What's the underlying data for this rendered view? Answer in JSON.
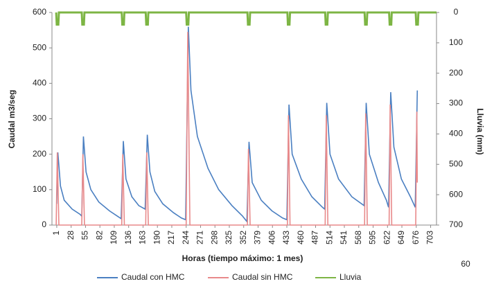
{
  "chart_data": {
    "type": "line",
    "x_label": "Horas (tiempo máximo: 1 mes)",
    "y_label": "Caudal m3/seg",
    "y2_label": "Lluvia (mm)",
    "xlim": [
      -8,
      714
    ],
    "xticks": [
      1,
      28,
      55,
      82,
      109,
      136,
      163,
      190,
      217,
      244,
      271,
      298,
      325,
      352,
      379,
      406,
      433,
      460,
      487,
      514,
      541,
      568,
      595,
      622,
      649,
      676,
      703
    ],
    "ylim": [
      0,
      600
    ],
    "yticks": [
      0,
      100,
      200,
      300,
      400,
      500,
      600
    ],
    "y2lim": [
      700,
      0
    ],
    "y2ticks": [
      0,
      100,
      200,
      300,
      400,
      500,
      600,
      700
    ],
    "stray_text": "60",
    "series": [
      {
        "name": "Caudal con HMC",
        "color": "#4a7fc1",
        "x": [
          1,
          3,
          8,
          15,
          30,
          45,
          48,
          51,
          56,
          65,
          80,
          100,
          115,
          122,
          126,
          131,
          142,
          155,
          167,
          171,
          176,
          185,
          200,
          220,
          235,
          243,
          248,
          253,
          265,
          285,
          305,
          330,
          350,
          358,
          362,
          368,
          385,
          405,
          425,
          433,
          437,
          443,
          460,
          480,
          500,
          504,
          508,
          514,
          530,
          555,
          578,
          582,
          588,
          605,
          620,
          624,
          628,
          634,
          648,
          665,
          674,
          678
        ],
        "values": [
          60,
          205,
          110,
          70,
          45,
          30,
          25,
          250,
          150,
          100,
          65,
          40,
          25,
          18,
          237,
          130,
          80,
          55,
          45,
          255,
          150,
          95,
          60,
          35,
          20,
          15,
          560,
          380,
          250,
          160,
          100,
          55,
          25,
          10,
          235,
          120,
          70,
          40,
          20,
          15,
          340,
          200,
          130,
          80,
          50,
          45,
          345,
          200,
          130,
          80,
          55,
          345,
          200,
          120,
          70,
          50,
          375,
          220,
          130,
          80,
          50,
          380
        ]
      },
      {
        "name": "Caudal sin HMC",
        "color": "#e8898a",
        "x": [
          0,
          2,
          5,
          48,
          50,
          53,
          123,
          125,
          128,
          168,
          170,
          173,
          244,
          247,
          251,
          359,
          361,
          364,
          434,
          436,
          439,
          505,
          507,
          510,
          579,
          581,
          584,
          625,
          627,
          630,
          675,
          677,
          678
        ],
        "values": [
          0,
          205,
          0,
          0,
          200,
          0,
          0,
          200,
          0,
          0,
          205,
          0,
          0,
          545,
          0,
          0,
          215,
          0,
          0,
          310,
          0,
          0,
          310,
          0,
          0,
          315,
          0,
          0,
          340,
          0,
          0,
          320,
          120
        ]
      },
      {
        "name": "Lluvia",
        "color": "#7db544",
        "axis": "y2",
        "x": [
          0,
          1,
          4,
          5,
          48,
          49,
          52,
          53,
          123,
          124,
          127,
          128,
          168,
          169,
          172,
          173,
          244,
          245,
          248,
          249,
          359,
          360,
          363,
          364,
          434,
          435,
          438,
          439,
          505,
          506,
          509,
          510,
          579,
          580,
          583,
          584,
          625,
          626,
          629,
          630,
          675,
          676,
          679,
          680,
          714
        ],
        "values": [
          0,
          40,
          40,
          0,
          0,
          40,
          40,
          0,
          0,
          40,
          40,
          0,
          0,
          40,
          40,
          0,
          0,
          40,
          40,
          0,
          0,
          40,
          40,
          0,
          0,
          40,
          40,
          0,
          0,
          40,
          40,
          0,
          0,
          40,
          40,
          0,
          0,
          40,
          40,
          0,
          0,
          40,
          40,
          0,
          0
        ]
      }
    ]
  }
}
